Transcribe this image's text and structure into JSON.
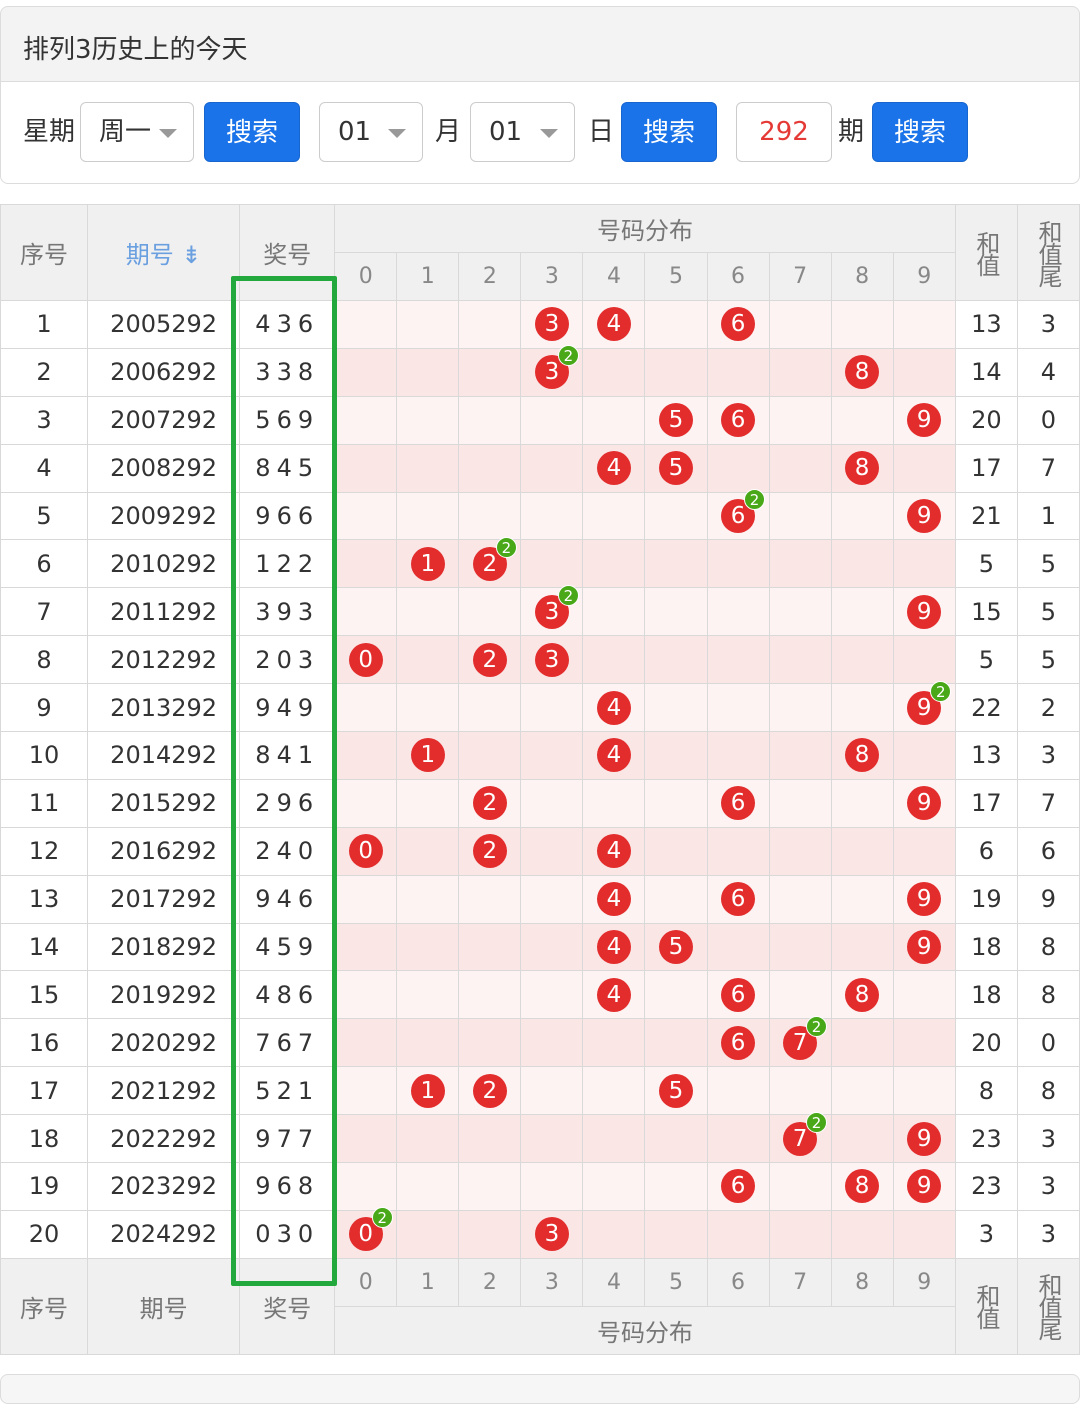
{
  "header": {
    "title": "排列3历史上的今天"
  },
  "search": {
    "weekday_label": "星期",
    "weekday_value": "周一",
    "search1": "搜索",
    "month_value": "01",
    "month_label": "月",
    "day_value": "01",
    "day_label": "日",
    "search2": "搜索",
    "period_value": "292",
    "period_label": "期",
    "search3": "搜索"
  },
  "table": {
    "col_index": "序号",
    "col_period": "期号",
    "sort_icon": "sort-icon",
    "sort_glyph": "⇟",
    "col_prize": "奖号",
    "col_distribution": "号码分布",
    "col_sum": "和值",
    "col_sum_tail": "和值尾",
    "digits": [
      "0",
      "1",
      "2",
      "3",
      "4",
      "5",
      "6",
      "7",
      "8",
      "9"
    ],
    "rows": [
      {
        "idx": "1",
        "period": "2005292",
        "prize": "436",
        "sum": "13",
        "tail": "3"
      },
      {
        "idx": "2",
        "period": "2006292",
        "prize": "338",
        "sum": "14",
        "tail": "4"
      },
      {
        "idx": "3",
        "period": "2007292",
        "prize": "569",
        "sum": "20",
        "tail": "0"
      },
      {
        "idx": "4",
        "period": "2008292",
        "prize": "845",
        "sum": "17",
        "tail": "7"
      },
      {
        "idx": "5",
        "period": "2009292",
        "prize": "966",
        "sum": "21",
        "tail": "1"
      },
      {
        "idx": "6",
        "period": "2010292",
        "prize": "122",
        "sum": "5",
        "tail": "5"
      },
      {
        "idx": "7",
        "period": "2011292",
        "prize": "393",
        "sum": "15",
        "tail": "5"
      },
      {
        "idx": "8",
        "period": "2012292",
        "prize": "203",
        "sum": "5",
        "tail": "5"
      },
      {
        "idx": "9",
        "period": "2013292",
        "prize": "949",
        "sum": "22",
        "tail": "2"
      },
      {
        "idx": "10",
        "period": "2014292",
        "prize": "841",
        "sum": "13",
        "tail": "3"
      },
      {
        "idx": "11",
        "period": "2015292",
        "prize": "296",
        "sum": "17",
        "tail": "7"
      },
      {
        "idx": "12",
        "period": "2016292",
        "prize": "240",
        "sum": "6",
        "tail": "6"
      },
      {
        "idx": "13",
        "period": "2017292",
        "prize": "946",
        "sum": "19",
        "tail": "9"
      },
      {
        "idx": "14",
        "period": "2018292",
        "prize": "459",
        "sum": "18",
        "tail": "8"
      },
      {
        "idx": "15",
        "period": "2019292",
        "prize": "486",
        "sum": "18",
        "tail": "8"
      },
      {
        "idx": "16",
        "period": "2020292",
        "prize": "767",
        "sum": "20",
        "tail": "0"
      },
      {
        "idx": "17",
        "period": "2021292",
        "prize": "521",
        "sum": "8",
        "tail": "8"
      },
      {
        "idx": "18",
        "period": "2022292",
        "prize": "977",
        "sum": "23",
        "tail": "3"
      },
      {
        "idx": "19",
        "period": "2023292",
        "prize": "968",
        "sum": "23",
        "tail": "3"
      },
      {
        "idx": "20",
        "period": "2024292",
        "prize": "030",
        "sum": "3",
        "tail": "3"
      }
    ]
  },
  "colors": {
    "ball": "#e32d2d",
    "repeat_badge": "#48a818",
    "button": "#1a73e8",
    "prize_text": "#e53935",
    "highlight_box": "#22a83c"
  }
}
